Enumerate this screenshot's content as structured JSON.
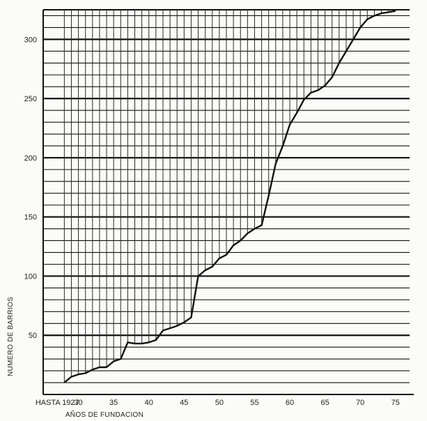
{
  "chart_data": {
    "type": "area",
    "xlabel": "AÑOS DE FUNDACION",
    "ylabel": "NUMERO DE BARRIOS",
    "xlim": [
      1925,
      1977
    ],
    "ylim": [
      0,
      325
    ],
    "x_tick_values": [
      1927,
      1930,
      1935,
      1940,
      1945,
      1950,
      1955,
      1960,
      1965,
      1970,
      1975
    ],
    "x_tick_labels": [
      "HASTA 1927",
      "30",
      "35",
      "40",
      "45",
      "50",
      "55",
      "60",
      "65",
      "70",
      "75"
    ],
    "y_tick_values": [
      50,
      100,
      150,
      200,
      250,
      300
    ],
    "y_tick_labels": [
      "50",
      "100",
      "150",
      "200",
      "250",
      "300"
    ],
    "grid": "horizontal lines every 10 barrios, bold every 50",
    "x": [
      1928,
      1929,
      1930,
      1931,
      1932,
      1933,
      1934,
      1935,
      1936,
      1937,
      1938,
      1939,
      1940,
      1941,
      1942,
      1943,
      1944,
      1945,
      1946,
      1947,
      1948,
      1949,
      1950,
      1951,
      1952,
      1953,
      1954,
      1955,
      1956,
      1957,
      1958,
      1959,
      1960,
      1961,
      1962,
      1963,
      1964,
      1965,
      1966,
      1967,
      1968,
      1969,
      1970,
      1971,
      1972,
      1973,
      1974,
      1975
    ],
    "values": [
      10,
      15,
      17,
      18,
      21,
      23,
      23,
      28,
      30,
      44,
      43,
      43,
      44,
      46,
      54,
      56,
      58,
      61,
      65,
      100,
      105,
      108,
      115,
      118,
      126,
      130,
      136,
      140,
      143,
      168,
      195,
      210,
      228,
      238,
      249,
      255,
      257,
      261,
      268,
      280,
      290,
      300,
      310,
      317,
      320,
      322,
      323,
      324
    ]
  }
}
